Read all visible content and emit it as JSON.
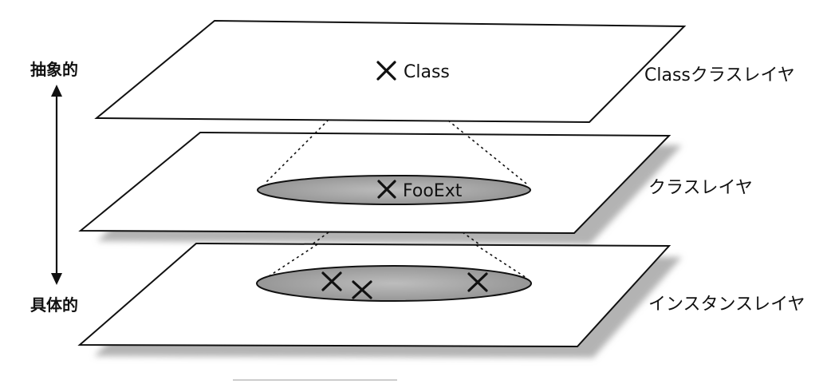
{
  "axis": {
    "top_label": "抽象的",
    "bottom_label": "具体的"
  },
  "layers": [
    {
      "name": "Classクラスレイヤ",
      "points": [
        "Class"
      ]
    },
    {
      "name": "クラスレイヤ",
      "points": [
        "FooExt"
      ]
    },
    {
      "name": "インスタンスレイヤ",
      "points": [
        "",
        "",
        ""
      ]
    }
  ],
  "colors": {
    "plane_fill": "#ffffff",
    "plane_stroke": "#111111",
    "region_fill": "#a8a8a8",
    "shadow": "#b5b5b5"
  }
}
